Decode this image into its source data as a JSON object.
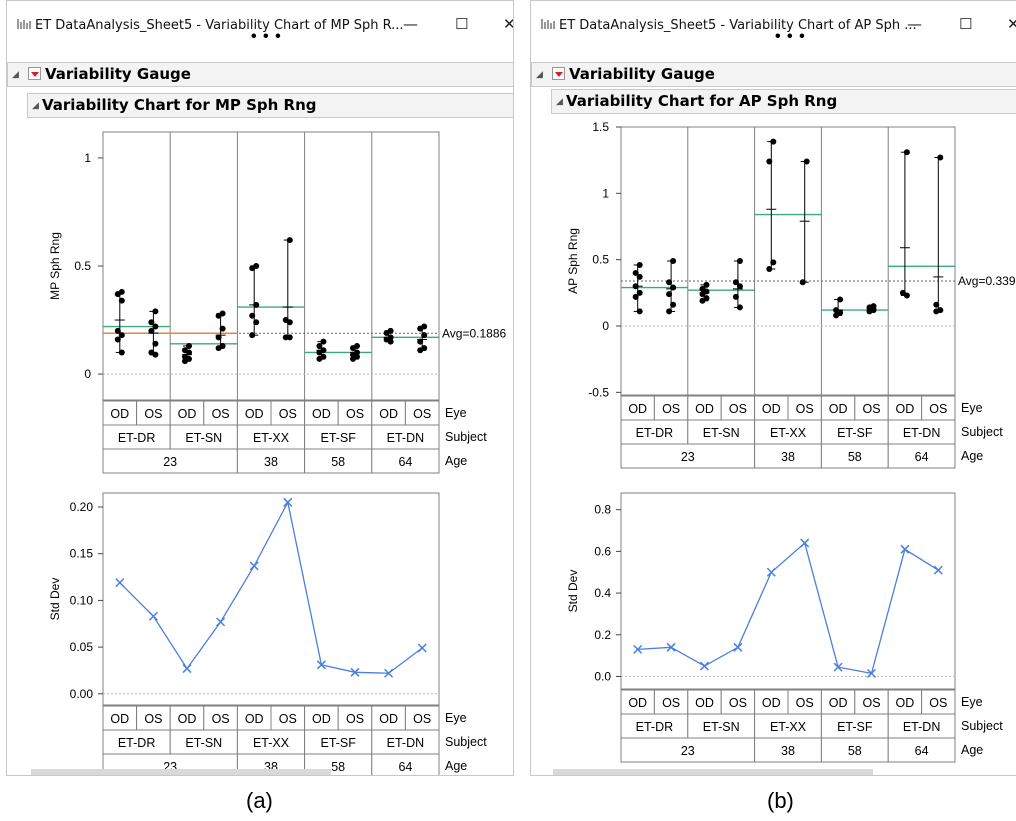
{
  "windows": [
    {
      "title": "ET DataAnalysis_Sheet5 - Variability Chart of MP Sph R...",
      "minimize": "—",
      "maximize": "☐",
      "close": "✕",
      "more": "• • •",
      "outline_title": "Variability Gauge",
      "chart_title": "Variability Chart for MP Sph Rng",
      "caption": "(a)"
    },
    {
      "title": "ET DataAnalysis_Sheet5 - Variability Chart of AP Sph ...",
      "minimize": "—",
      "maximize": "☐",
      "close": "✕",
      "more": "• • •",
      "outline_title": "Variability Gauge",
      "chart_title": "Variability Chart for AP Sph Rng",
      "caption": "(b)"
    }
  ],
  "colors": {
    "mean_line": "#3aaa7d",
    "grand_mean_line": "#e08a3c",
    "std_series": "#4a7fe0",
    "points": "#000000",
    "grid_border": "#808080"
  },
  "chart_data": [
    {
      "type": "variability",
      "ylabel": "MP Sph Rng",
      "yticks": [
        0,
        0.5,
        1
      ],
      "ylim": [
        -0.12,
        1.12
      ],
      "avg_label": "Avg=0.1886",
      "grand_mean": 0.1886,
      "eye": [
        "OD",
        "OS",
        "OD",
        "OS",
        "OD",
        "OS",
        "OD",
        "OS",
        "OD",
        "OS"
      ],
      "subjects": [
        "ET-DR",
        "ET-SN",
        "ET-XX",
        "ET-SF",
        "ET-DN"
      ],
      "ages": [
        {
          "label": "23",
          "span": 4
        },
        {
          "label": "38",
          "span": 2
        },
        {
          "label": "58",
          "span": 2
        },
        {
          "label": "64",
          "span": 2
        }
      ],
      "row_labels": [
        "Eye",
        "Subject",
        "Age"
      ],
      "subject_means": [
        0.22,
        0.14,
        0.31,
        0.1,
        0.17
      ],
      "cells": [
        {
          "points": [
            0.38,
            0.37,
            0.34,
            0.2,
            0.18,
            0.16,
            0.1
          ],
          "mean": 0.25
        },
        {
          "points": [
            0.29,
            0.24,
            0.22,
            0.2,
            0.14,
            0.1,
            0.09
          ],
          "mean": 0.19
        },
        {
          "points": [
            0.13,
            0.11,
            0.1,
            0.08,
            0.07,
            0.06
          ],
          "mean": 0.09
        },
        {
          "points": [
            0.28,
            0.27,
            0.21,
            0.17,
            0.13,
            0.12
          ],
          "mean": 0.18
        },
        {
          "points": [
            0.5,
            0.49,
            0.32,
            0.27,
            0.24,
            0.18
          ],
          "mean": 0.32
        },
        {
          "points": [
            0.62,
            0.25,
            0.24,
            0.17,
            0.17
          ],
          "mean": 0.31
        },
        {
          "points": [
            0.15,
            0.13,
            0.11,
            0.1,
            0.08,
            0.07
          ],
          "mean": 0.11
        },
        {
          "points": [
            0.13,
            0.12,
            0.1,
            0.09,
            0.08,
            0.07
          ],
          "mean": 0.1
        },
        {
          "points": [
            0.2,
            0.19,
            0.17,
            0.16,
            0.15
          ],
          "mean": 0.17
        },
        {
          "points": [
            0.22,
            0.21,
            0.18,
            0.15,
            0.12,
            0.11
          ],
          "mean": 0.16
        }
      ],
      "std": {
        "ylabel": "Std Dev",
        "yticks": [
          0,
          0.05,
          0.1,
          0.15,
          0.2
        ],
        "ytick_labels": [
          "0.00",
          "0.05",
          "0.10",
          "0.15",
          "0.20"
        ],
        "ylim": [
          -0.012,
          0.215
        ],
        "values": [
          0.119,
          0.083,
          0.027,
          0.077,
          0.137,
          0.205,
          0.031,
          0.023,
          0.022,
          0.049
        ]
      }
    },
    {
      "type": "variability",
      "ylabel": "AP Sph Rng",
      "yticks": [
        -0.5,
        0,
        0.5,
        1,
        1.5
      ],
      "ylim": [
        -0.52,
        1.5
      ],
      "avg_label": "Avg=0.339",
      "grand_mean": 0.339,
      "eye": [
        "OD",
        "OS",
        "OD",
        "OS",
        "OD",
        "OS",
        "OD",
        "OS",
        "OD",
        "OS"
      ],
      "subjects": [
        "ET-DR",
        "ET-SN",
        "ET-XX",
        "ET-SF",
        "ET-DN"
      ],
      "ages": [
        {
          "label": "23",
          "span": 4
        },
        {
          "label": "38",
          "span": 2
        },
        {
          "label": "58",
          "span": 2
        },
        {
          "label": "64",
          "span": 2
        }
      ],
      "row_labels": [
        "Eye",
        "Subject",
        "Age"
      ],
      "subject_means": [
        0.29,
        0.27,
        0.84,
        0.12,
        0.45
      ],
      "cells": [
        {
          "points": [
            0.46,
            0.4,
            0.37,
            0.3,
            0.25,
            0.22,
            0.11
          ],
          "mean": 0.3
        },
        {
          "points": [
            0.49,
            0.33,
            0.29,
            0.24,
            0.16,
            0.11
          ],
          "mean": 0.28
        },
        {
          "points": [
            0.31,
            0.28,
            0.26,
            0.24,
            0.21,
            0.19
          ],
          "mean": 0.25
        },
        {
          "points": [
            0.49,
            0.33,
            0.3,
            0.22,
            0.14
          ],
          "mean": 0.28
        },
        {
          "points": [
            1.39,
            1.24,
            0.48,
            0.43
          ],
          "mean": 0.88
        },
        {
          "points": [
            1.24,
            0.33
          ],
          "mean": 0.79
        },
        {
          "points": [
            0.2,
            0.12,
            0.1,
            0.08
          ],
          "mean": 0.12
        },
        {
          "points": [
            0.15,
            0.14,
            0.12,
            0.11
          ],
          "mean": 0.13
        },
        {
          "points": [
            1.31,
            0.25,
            0.23
          ],
          "mean": 0.59
        },
        {
          "points": [
            1.27,
            0.16,
            0.12,
            0.11
          ],
          "mean": 0.37
        }
      ],
      "std": {
        "ylabel": "Std Dev",
        "yticks": [
          0,
          0.2,
          0.4,
          0.6,
          0.8
        ],
        "ytick_labels": [
          "0.0",
          "0.2",
          "0.4",
          "0.6",
          "0.8"
        ],
        "ylim": [
          -0.06,
          0.88
        ],
        "values": [
          0.13,
          0.14,
          0.05,
          0.14,
          0.5,
          0.64,
          0.045,
          0.015,
          0.61,
          0.51
        ]
      }
    }
  ]
}
